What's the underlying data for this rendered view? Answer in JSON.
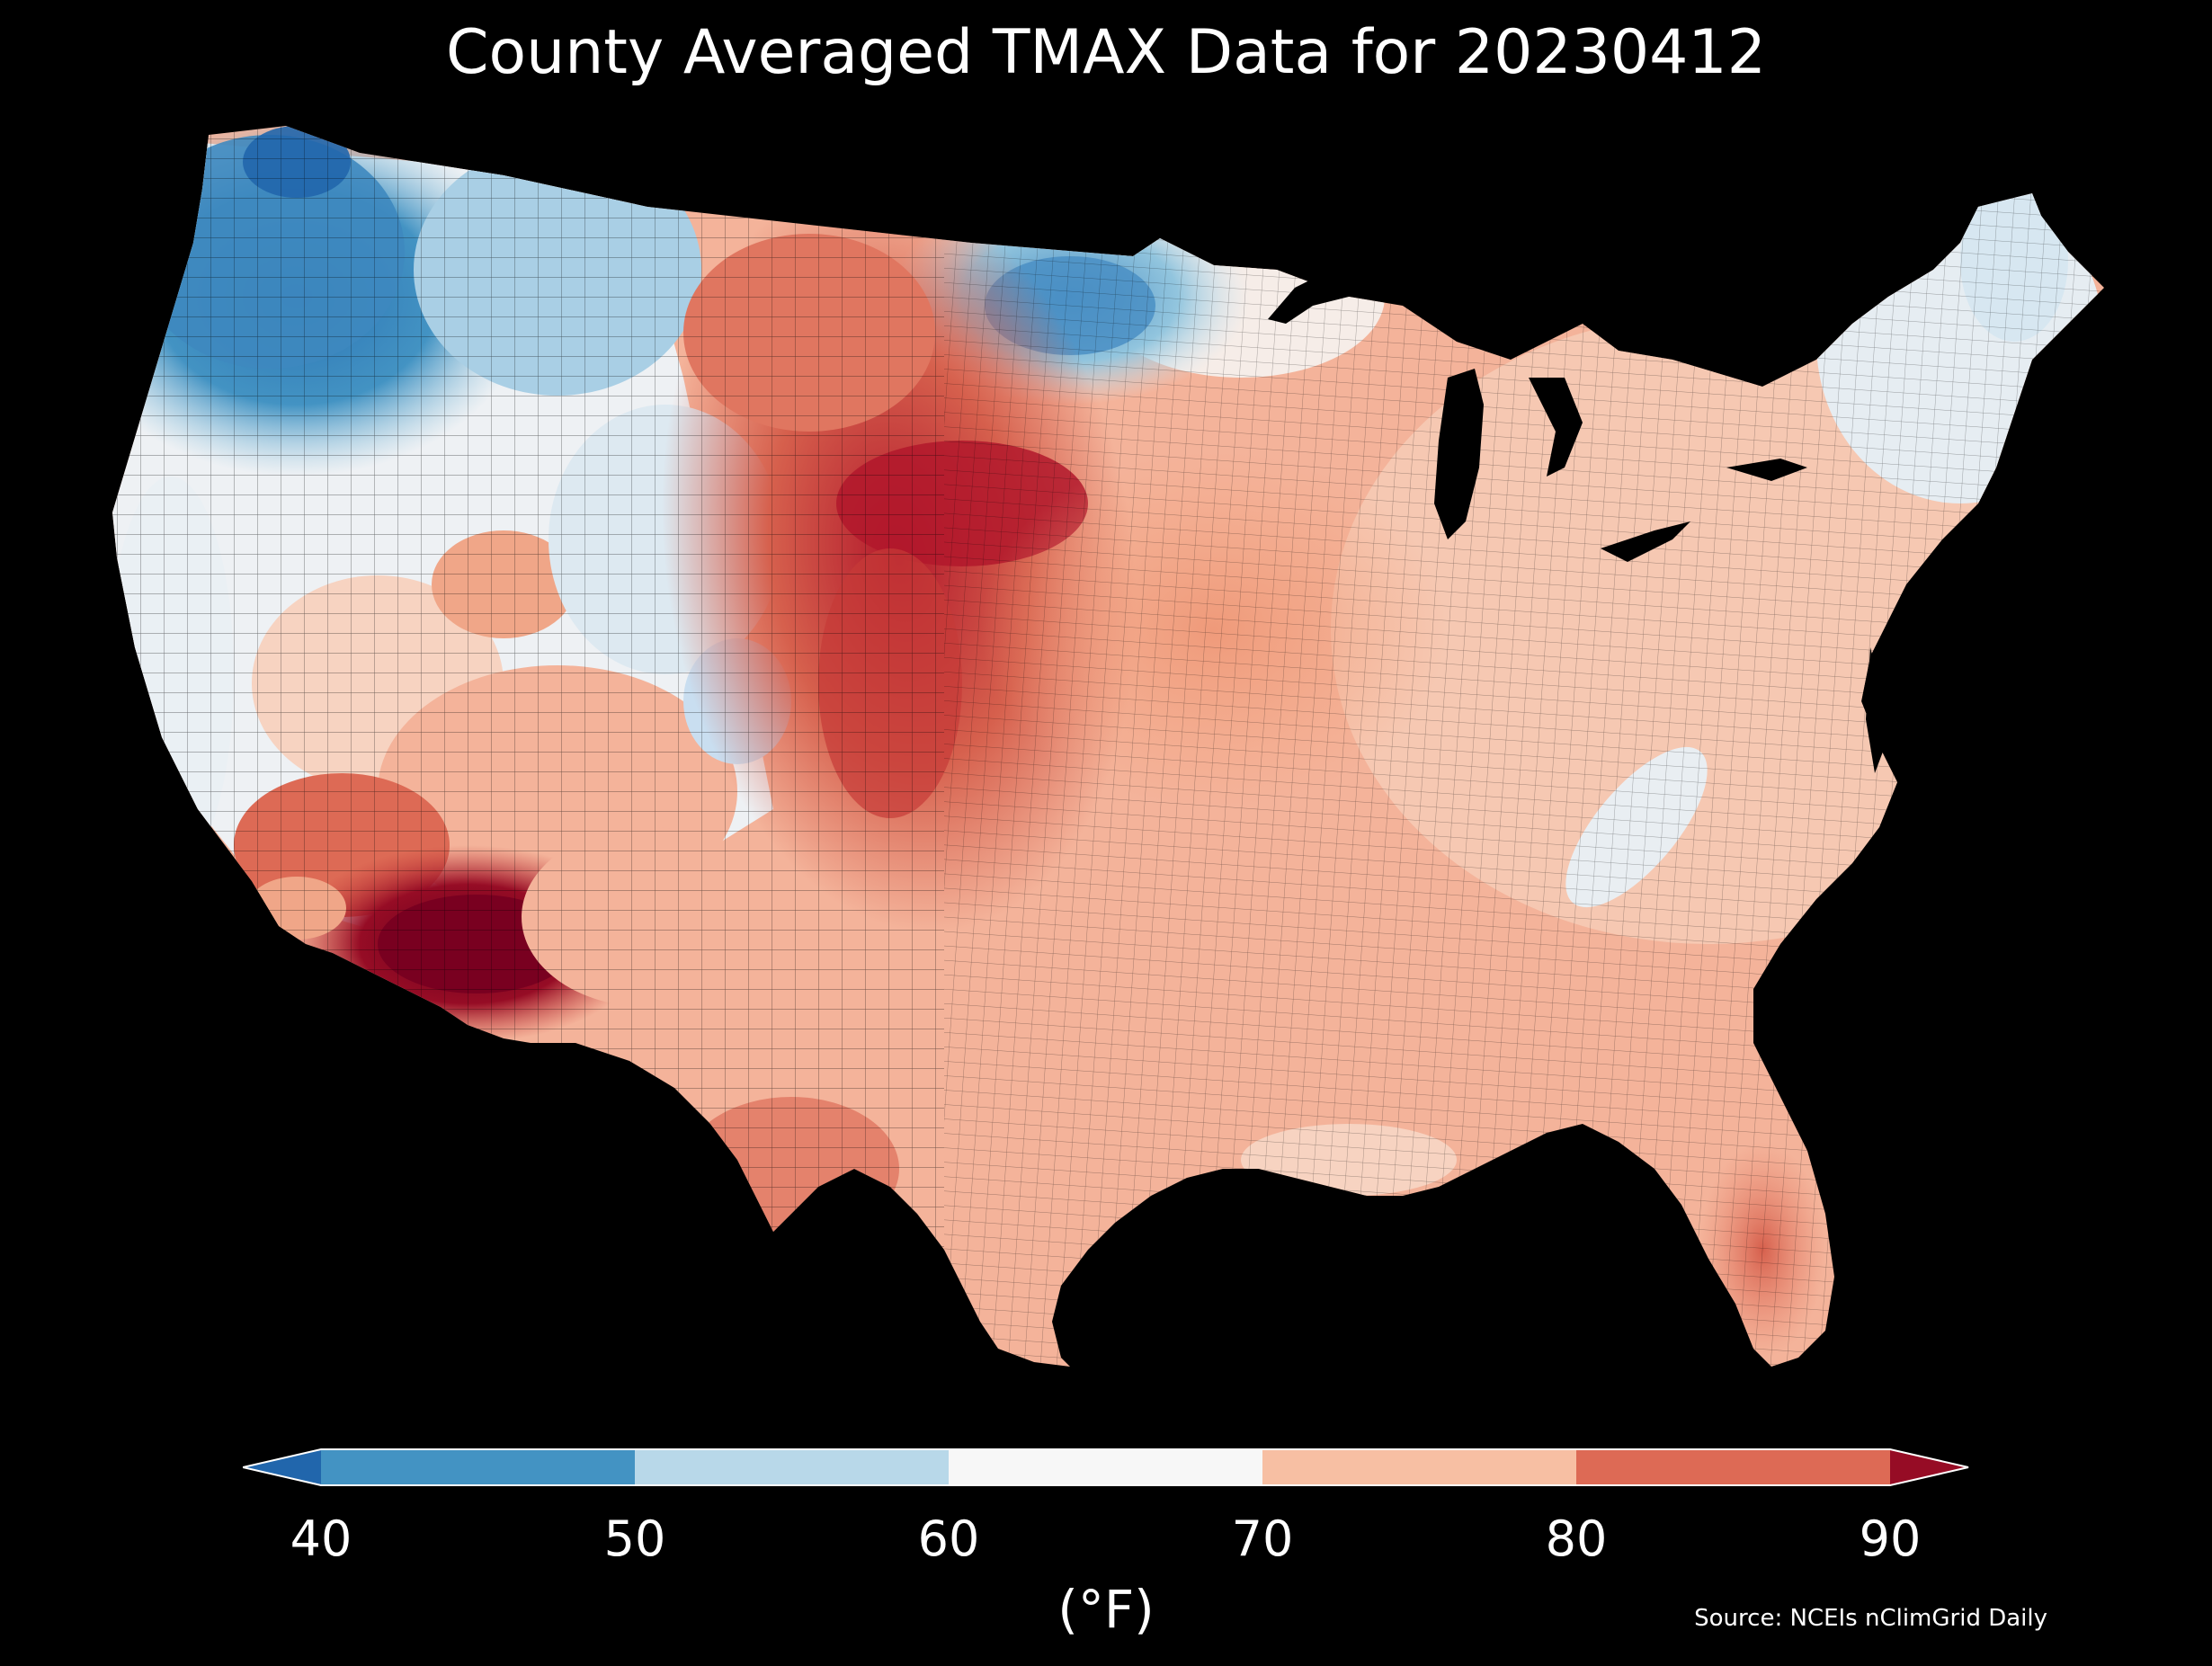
{
  "title": "County Averaged TMAX Data for 20230412",
  "colorbar": {
    "ticks": [
      "40",
      "50",
      "60",
      "70",
      "80",
      "90"
    ],
    "unit_label": "(°F)",
    "bins": [
      {
        "range": [
          null,
          40
        ],
        "color": "#2166ac"
      },
      {
        "range": [
          40,
          50
        ],
        "color": "#4393c3"
      },
      {
        "range": [
          50,
          60
        ],
        "color": "#b8d8e9"
      },
      {
        "range": [
          60,
          70
        ],
        "color": "#f7f7f7"
      },
      {
        "range": [
          70,
          80
        ],
        "color": "#f7bfa3"
      },
      {
        "range": [
          80,
          90
        ],
        "color": "#dd6a55"
      },
      {
        "range": [
          90,
          null
        ],
        "color": "#960c25"
      }
    ]
  },
  "source": "Source: NCEIs nClimGrid Daily",
  "map": {
    "background": "#000000",
    "extent": "contiguous United States",
    "regions": [
      {
        "name": "pacific-northwest",
        "tmax_band": "40-50"
      },
      {
        "name": "northern-rockies",
        "tmax_band": "50-60"
      },
      {
        "name": "great-basin",
        "tmax_band": "60-70"
      },
      {
        "name": "desert-southwest",
        "tmax_band": "80-90"
      },
      {
        "name": "southern-arizona",
        "tmax_band": ">90"
      },
      {
        "name": "northern-high-plains",
        "tmax_band": "80-90"
      },
      {
        "name": "central-plains",
        "tmax_band": "80-90"
      },
      {
        "name": "north-dakota-minnesota",
        "tmax_band": "50-60"
      },
      {
        "name": "midwest",
        "tmax_band": "70-80"
      },
      {
        "name": "southeast",
        "tmax_band": "70-80"
      },
      {
        "name": "appalachians",
        "tmax_band": "60-70"
      },
      {
        "name": "new-england",
        "tmax_band": "60-70"
      },
      {
        "name": "maine",
        "tmax_band": "50-60"
      },
      {
        "name": "texas",
        "tmax_band": "70-80"
      },
      {
        "name": "south-florida",
        "tmax_band": "80-90"
      }
    ]
  }
}
